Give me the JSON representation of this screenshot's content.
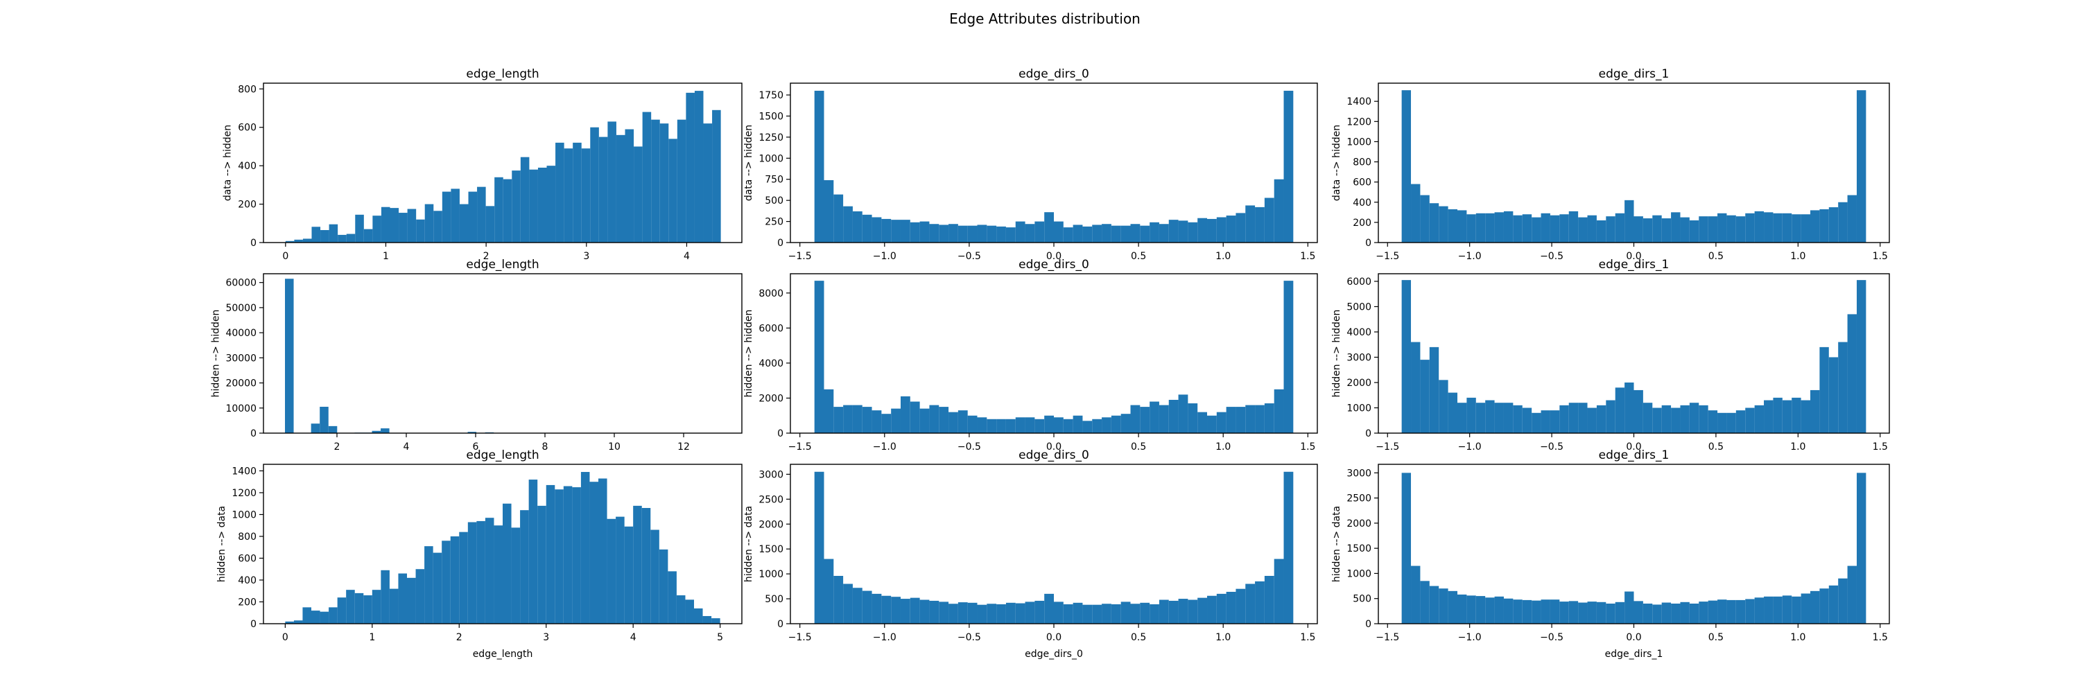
{
  "figure": {
    "title": "Edge Attributes distribution",
    "bar_color": "#1f77b4"
  },
  "chart_data": [
    {
      "type": "bar",
      "title": "edge_length",
      "xlabel": "",
      "ylabel": "data --> hidden",
      "xlim": [
        -0.22,
        4.55
      ],
      "ylim": [
        0,
        830
      ],
      "xticks": [
        "0",
        "1",
        "2",
        "3",
        "4"
      ],
      "xtick_values": [
        0,
        1,
        2,
        3,
        4
      ],
      "yticks": [
        "0",
        "200",
        "400",
        "600",
        "800"
      ],
      "ytick_values": [
        0,
        200,
        400,
        600,
        800
      ],
      "bin_start": 0.0,
      "bin_end": 4.34,
      "values": [
        8,
        15,
        20,
        82,
        65,
        95,
        40,
        45,
        145,
        70,
        140,
        185,
        180,
        155,
        175,
        120,
        200,
        165,
        265,
        280,
        200,
        265,
        290,
        190,
        340,
        330,
        375,
        445,
        380,
        390,
        400,
        520,
        490,
        520,
        490,
        600,
        550,
        630,
        560,
        590,
        500,
        680,
        640,
        620,
        540,
        640,
        780,
        790,
        620,
        690
      ]
    },
    {
      "type": "bar",
      "title": "edge_dirs_0",
      "xlabel": "",
      "ylabel": "data --> hidden",
      "xlim": [
        -1.556,
        1.556
      ],
      "ylim": [
        0,
        1890
      ],
      "xticks": [
        "−1.5",
        "−1.0",
        "−0.5",
        "0.0",
        "0.5",
        "1.0",
        "1.5"
      ],
      "xtick_values": [
        -1.5,
        -1.0,
        -0.5,
        0.0,
        0.5,
        1.0,
        1.5
      ],
      "yticks": [
        "0",
        "250",
        "500",
        "750",
        "1000",
        "1250",
        "1500",
        "1750"
      ],
      "ytick_values": [
        0,
        250,
        500,
        750,
        1000,
        1250,
        1500,
        1750
      ],
      "bin_start": -1.414,
      "bin_end": 1.414,
      "values": [
        1800,
        740,
        570,
        430,
        370,
        330,
        300,
        280,
        270,
        270,
        240,
        250,
        220,
        210,
        220,
        200,
        200,
        210,
        200,
        190,
        180,
        250,
        220,
        250,
        360,
        250,
        180,
        210,
        190,
        210,
        220,
        200,
        200,
        220,
        200,
        240,
        220,
        270,
        260,
        240,
        290,
        280,
        300,
        320,
        350,
        440,
        420,
        530,
        750,
        1800
      ]
    },
    {
      "type": "bar",
      "title": "edge_dirs_1",
      "xlabel": "",
      "ylabel": "data --> hidden",
      "xlim": [
        -1.556,
        1.556
      ],
      "ylim": [
        0,
        1580
      ],
      "xticks": [
        "−1.5",
        "−1.0",
        "−0.5",
        "0.0",
        "0.5",
        "1.0",
        "1.5"
      ],
      "xtick_values": [
        -1.5,
        -1.0,
        -0.5,
        0.0,
        0.5,
        1.0,
        1.5
      ],
      "yticks": [
        "0",
        "200",
        "400",
        "600",
        "800",
        "1000",
        "1200",
        "1400"
      ],
      "ytick_values": [
        0,
        200,
        400,
        600,
        800,
        1000,
        1200,
        1400
      ],
      "bin_start": -1.414,
      "bin_end": 1.414,
      "values": [
        1510,
        580,
        470,
        390,
        360,
        330,
        320,
        280,
        290,
        290,
        300,
        310,
        270,
        280,
        250,
        290,
        270,
        280,
        310,
        250,
        270,
        220,
        260,
        290,
        420,
        260,
        240,
        270,
        240,
        300,
        250,
        220,
        260,
        260,
        290,
        270,
        260,
        290,
        310,
        300,
        290,
        290,
        280,
        280,
        320,
        330,
        350,
        400,
        470,
        1510
      ]
    },
    {
      "type": "bar",
      "title": "edge_length",
      "xlabel": "",
      "ylabel": "hidden --> hidden",
      "xlim": [
        -0.12,
        13.68
      ],
      "ylim": [
        0,
        63500
      ],
      "xticks": [
        "2",
        "4",
        "6",
        "8",
        "10",
        "12"
      ],
      "xtick_values": [
        2,
        4,
        6,
        8,
        10,
        12
      ],
      "yticks": [
        "0",
        "10000",
        "20000",
        "30000",
        "40000",
        "50000",
        "60000"
      ],
      "ytick_values": [
        0,
        10000,
        20000,
        30000,
        40000,
        50000,
        60000
      ],
      "bin_start": 0.5,
      "bin_end": 13.05,
      "values": [
        61500,
        0,
        0,
        3800,
        10500,
        2800,
        0,
        0,
        200,
        200,
        900,
        1900,
        0,
        0,
        0,
        0,
        0,
        0,
        0,
        0,
        100,
        500,
        0,
        300,
        0,
        0,
        0,
        0,
        0,
        0,
        0,
        0,
        0,
        0,
        0,
        0,
        0,
        0,
        0,
        0,
        0,
        0,
        0,
        0,
        0,
        0,
        0,
        0,
        0,
        80
      ]
    },
    {
      "type": "bar",
      "title": "edge_dirs_0",
      "xlabel": "",
      "ylabel": "hidden --> hidden",
      "xlim": [
        -1.556,
        1.556
      ],
      "ylim": [
        0,
        9100
      ],
      "xticks": [
        "−1.5",
        "−1.0",
        "−0.5",
        "0.0",
        "0.5",
        "1.0",
        "1.5"
      ],
      "xtick_values": [
        -1.5,
        -1.0,
        -0.5,
        0.0,
        0.5,
        1.0,
        1.5
      ],
      "yticks": [
        "0",
        "2000",
        "4000",
        "6000",
        "8000"
      ],
      "ytick_values": [
        0,
        2000,
        4000,
        6000,
        8000
      ],
      "bin_start": -1.414,
      "bin_end": 1.414,
      "values": [
        8700,
        2500,
        1500,
        1600,
        1600,
        1500,
        1300,
        1100,
        1400,
        2100,
        1800,
        1400,
        1600,
        1500,
        1200,
        1300,
        1000,
        900,
        800,
        800,
        800,
        900,
        900,
        800,
        1000,
        900,
        800,
        1000,
        700,
        800,
        900,
        1000,
        1100,
        1600,
        1500,
        1800,
        1600,
        1900,
        2200,
        1700,
        1200,
        1000,
        1200,
        1500,
        1500,
        1600,
        1600,
        1700,
        2500,
        8700
      ]
    },
    {
      "type": "bar",
      "title": "edge_dirs_1",
      "xlabel": "",
      "ylabel": "hidden --> hidden",
      "xlim": [
        -1.556,
        1.556
      ],
      "ylim": [
        0,
        6300
      ],
      "xticks": [
        "−1.5",
        "−1.0",
        "−0.5",
        "0.0",
        "0.5",
        "1.0",
        "1.5"
      ],
      "xtick_values": [
        -1.5,
        -1.0,
        -0.5,
        0.0,
        0.5,
        1.0,
        1.5
      ],
      "yticks": [
        "0",
        "1000",
        "2000",
        "3000",
        "4000",
        "5000",
        "6000"
      ],
      "ytick_values": [
        0,
        1000,
        2000,
        3000,
        4000,
        5000,
        6000
      ],
      "bin_start": -1.414,
      "bin_end": 1.414,
      "values": [
        6050,
        3600,
        2900,
        3400,
        2100,
        1600,
        1200,
        1400,
        1200,
        1300,
        1200,
        1200,
        1100,
        1000,
        800,
        900,
        900,
        1100,
        1200,
        1200,
        1000,
        1100,
        1300,
        1800,
        2000,
        1700,
        1200,
        1000,
        1100,
        1000,
        1100,
        1200,
        1100,
        900,
        800,
        800,
        900,
        1000,
        1100,
        1300,
        1400,
        1300,
        1400,
        1300,
        1700,
        3400,
        3000,
        3600,
        4700,
        6050
      ]
    },
    {
      "type": "bar",
      "title": "edge_length",
      "xlabel": "edge_length",
      "ylabel": "hidden --> data",
      "xlim": [
        -0.25,
        5.25
      ],
      "ylim": [
        0,
        1460
      ],
      "xticks": [
        "0",
        "1",
        "2",
        "3",
        "4",
        "5"
      ],
      "xtick_values": [
        0,
        1,
        2,
        3,
        4,
        5
      ],
      "yticks": [
        "0",
        "200",
        "400",
        "600",
        "800",
        "1000",
        "1200",
        "1400"
      ],
      "ytick_values": [
        0,
        200,
        400,
        600,
        800,
        1000,
        1200,
        1400
      ],
      "bin_start": 0.0,
      "bin_end": 5.0,
      "values": [
        20,
        30,
        150,
        120,
        110,
        150,
        240,
        310,
        280,
        260,
        310,
        490,
        320,
        460,
        420,
        500,
        710,
        650,
        760,
        800,
        840,
        930,
        940,
        970,
        900,
        1100,
        880,
        1040,
        1320,
        1080,
        1270,
        1230,
        1260,
        1250,
        1390,
        1300,
        1330,
        960,
        980,
        890,
        1080,
        1060,
        860,
        680,
        480,
        260,
        220,
        140,
        70,
        50
      ]
    },
    {
      "type": "bar",
      "title": "edge_dirs_0",
      "xlabel": "edge_dirs_0",
      "ylabel": "hidden --> data",
      "xlim": [
        -1.556,
        1.556
      ],
      "ylim": [
        0,
        3200
      ],
      "xticks": [
        "−1.5",
        "−1.0",
        "−0.5",
        "0.0",
        "0.5",
        "1.0",
        "1.5"
      ],
      "xtick_values": [
        -1.5,
        -1.0,
        -0.5,
        0.0,
        0.5,
        1.0,
        1.5
      ],
      "yticks": [
        "0",
        "500",
        "1000",
        "1500",
        "2000",
        "2500",
        "3000"
      ],
      "ytick_values": [
        0,
        500,
        1000,
        1500,
        2000,
        2500,
        3000
      ],
      "bin_start": -1.414,
      "bin_end": 1.414,
      "values": [
        3050,
        1300,
        960,
        800,
        720,
        660,
        600,
        560,
        540,
        500,
        520,
        480,
        460,
        440,
        400,
        430,
        420,
        380,
        400,
        390,
        420,
        410,
        440,
        460,
        600,
        440,
        390,
        420,
        380,
        380,
        400,
        390,
        440,
        400,
        420,
        390,
        480,
        460,
        500,
        480,
        520,
        560,
        600,
        640,
        700,
        800,
        850,
        960,
        1300,
        3050
      ]
    },
    {
      "type": "bar",
      "title": "edge_dirs_1",
      "xlabel": "edge_dirs_1",
      "ylabel": "hidden --> data",
      "xlim": [
        -1.556,
        1.556
      ],
      "ylim": [
        0,
        3170
      ],
      "xticks": [
        "−1.5",
        "−1.0",
        "−0.5",
        "0.0",
        "0.5",
        "1.0",
        "1.5"
      ],
      "xtick_values": [
        -1.5,
        -1.0,
        -0.5,
        0.0,
        0.5,
        1.0,
        1.5
      ],
      "yticks": [
        "0",
        "500",
        "1000",
        "1500",
        "2000",
        "2500",
        "3000"
      ],
      "ytick_values": [
        0,
        500,
        1000,
        1500,
        2000,
        2500,
        3000
      ],
      "bin_start": -1.414,
      "bin_end": 1.414,
      "values": [
        3000,
        1150,
        850,
        750,
        700,
        650,
        580,
        560,
        550,
        520,
        540,
        500,
        480,
        470,
        460,
        480,
        480,
        440,
        450,
        420,
        440,
        430,
        400,
        430,
        640,
        450,
        400,
        380,
        420,
        400,
        430,
        400,
        440,
        460,
        480,
        470,
        470,
        490,
        520,
        540,
        540,
        560,
        540,
        600,
        650,
        700,
        760,
        900,
        1150,
        3000
      ]
    }
  ]
}
